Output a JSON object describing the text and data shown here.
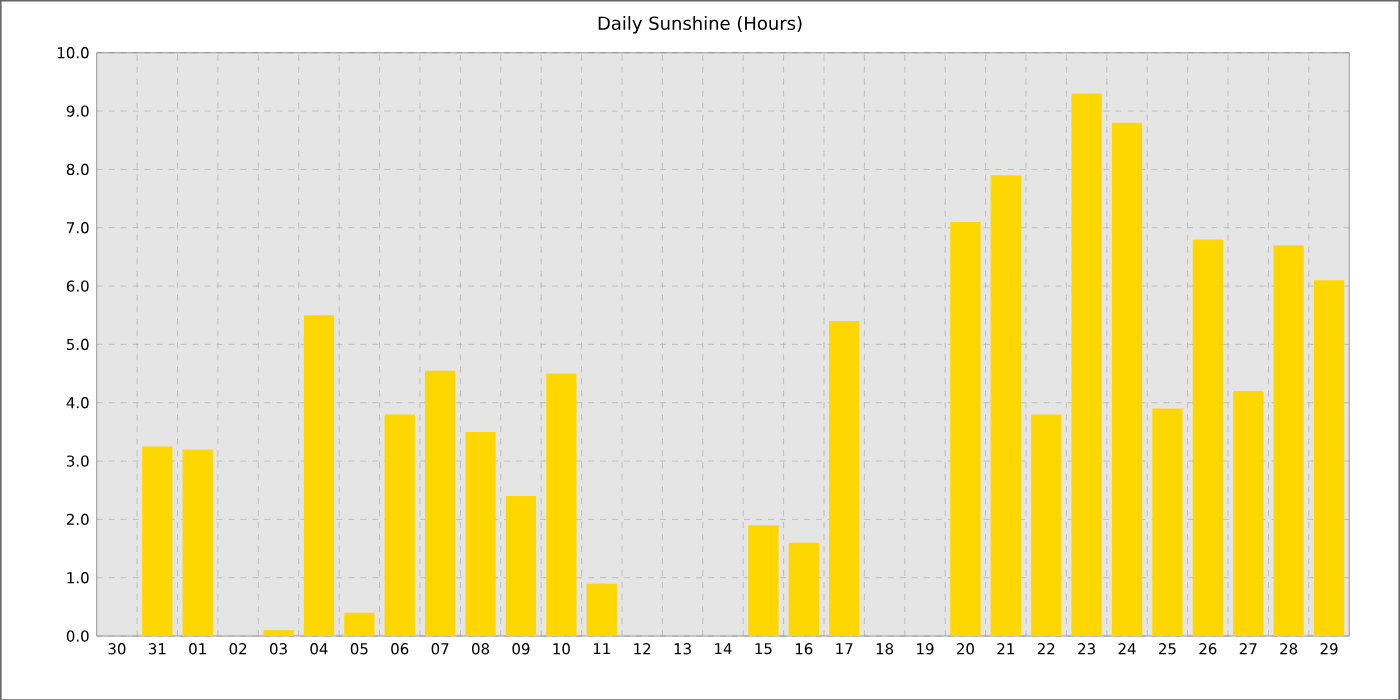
{
  "chart_data": {
    "type": "bar",
    "title": "Daily Sunshine (Hours)",
    "categories": [
      "30",
      "31",
      "01",
      "02",
      "03",
      "04",
      "05",
      "06",
      "07",
      "08",
      "09",
      "10",
      "11",
      "12",
      "13",
      "14",
      "15",
      "16",
      "17",
      "18",
      "19",
      "20",
      "21",
      "22",
      "23",
      "24",
      "25",
      "26",
      "27",
      "28",
      "29"
    ],
    "values": [
      0,
      3.25,
      3.2,
      0,
      0.1,
      5.5,
      0.4,
      3.8,
      4.55,
      3.5,
      2.4,
      4.5,
      0.9,
      0,
      0,
      0,
      1.9,
      1.6,
      5.4,
      0,
      0,
      7.1,
      7.9,
      3.8,
      9.3,
      8.8,
      3.9,
      6.8,
      4.2,
      6.7,
      6.1
    ],
    "color": "#ffd700",
    "ylim": [
      0,
      10
    ],
    "yticks": [
      {
        "value": 0,
        "label": "0.0"
      },
      {
        "value": 1,
        "label": "1.0"
      },
      {
        "value": 2,
        "label": "2.0"
      },
      {
        "value": 3,
        "label": "3.0"
      },
      {
        "value": 4,
        "label": "4.0"
      },
      {
        "value": 5,
        "label": "5.0"
      },
      {
        "value": 6,
        "label": "6.0"
      },
      {
        "value": 7,
        "label": "7.0"
      },
      {
        "value": 8,
        "label": "8.0"
      },
      {
        "value": 9,
        "label": "9.0"
      },
      {
        "value": 10,
        "label": "10.0"
      }
    ],
    "grid": true
  }
}
